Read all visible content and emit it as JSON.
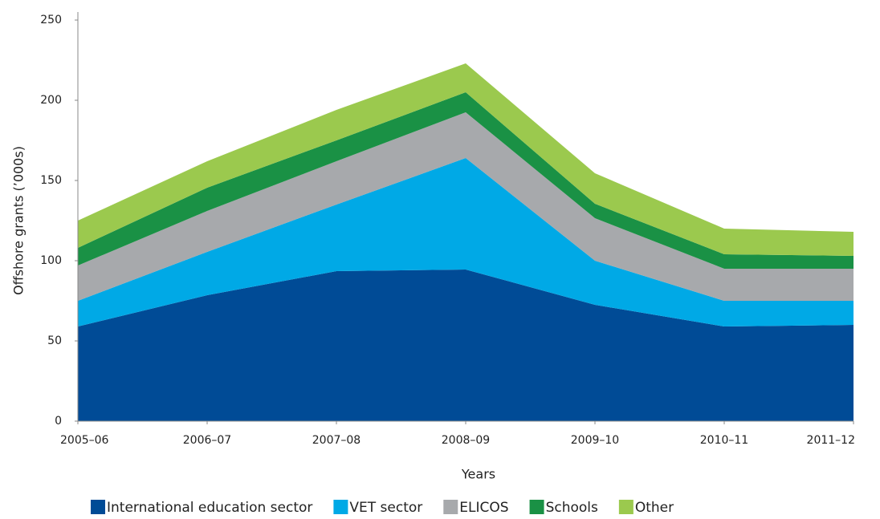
{
  "chart_data": {
    "type": "stacked_area",
    "x_label": "Years",
    "y_label": "Offshore grants (’000s)",
    "categories": [
      "2005–06",
      "2006–07",
      "2007–08",
      "2008–09",
      "2009–10",
      "2010–11",
      "2011–12"
    ],
    "series": [
      {
        "name": "International education sector",
        "color": "#004b96",
        "values": [
          59,
          78.5,
          93.5,
          94.5,
          72.5,
          59,
          60
        ]
      },
      {
        "name": "VET sector",
        "color": "#00a9e6",
        "values": [
          16,
          27,
          41.5,
          69.5,
          27.5,
          16,
          15
        ]
      },
      {
        "name": "ELICOS",
        "color": "#a7a9ac",
        "values": [
          22,
          25.5,
          27,
          28.5,
          26.5,
          20,
          20
        ]
      },
      {
        "name": "Schools",
        "color": "#1a9145",
        "values": [
          11,
          14.5,
          13,
          12.5,
          9,
          9,
          8
        ]
      },
      {
        "name": "Other",
        "color": "#9bc94e",
        "values": [
          17,
          16.5,
          19,
          18,
          19,
          16,
          15
        ]
      }
    ],
    "ylim": [
      0,
      250
    ],
    "yticks": [
      0,
      50,
      100,
      150,
      200,
      250
    ],
    "grid": false,
    "legend": "bottom"
  }
}
